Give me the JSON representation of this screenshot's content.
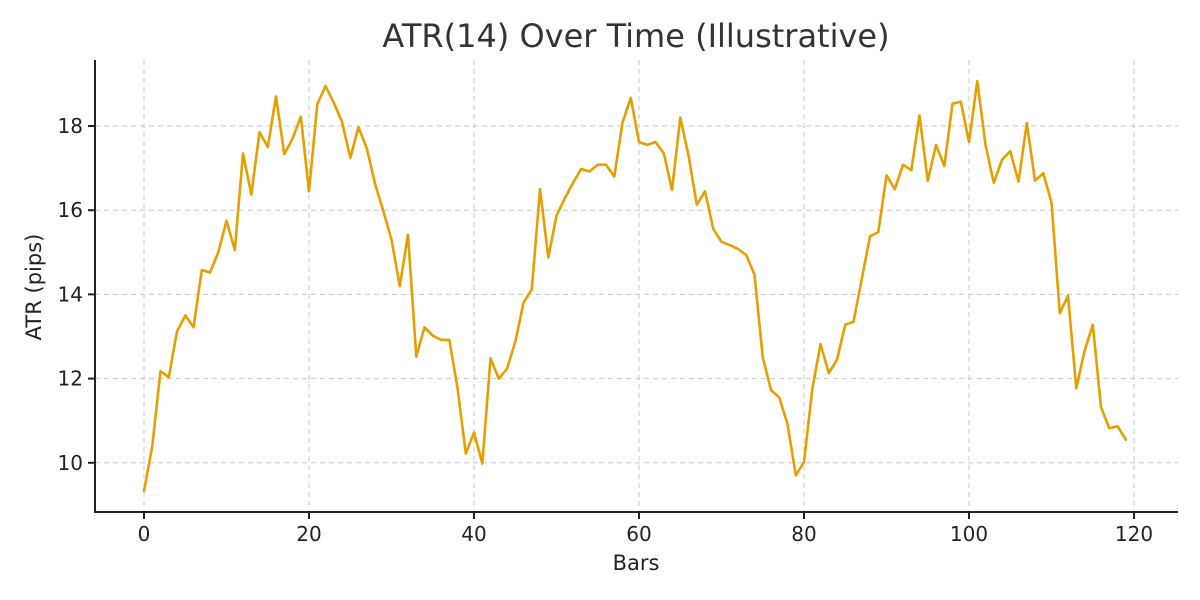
{
  "chart_data": {
    "type": "line",
    "title": "ATR(14) Over Time (Illustrative)",
    "xlabel": "Bars",
    "ylabel": "ATR (pips)",
    "xlim": [
      -6,
      126
    ],
    "ylim": [
      8.8,
      19.5
    ],
    "grid": true,
    "legend": null,
    "x_ticks": [
      0,
      20,
      40,
      60,
      80,
      100,
      120
    ],
    "y_ticks": [
      10,
      12,
      14,
      16,
      18
    ],
    "colors": {
      "line": "#E69F00",
      "grid": "#c8c8c8",
      "axis": "#222222",
      "title": "#333333"
    },
    "series": [
      {
        "name": "ATR(14)",
        "x": [
          0,
          1,
          2,
          3,
          4,
          5,
          6,
          7,
          8,
          9,
          10,
          11,
          12,
          13,
          14,
          15,
          16,
          17,
          18,
          19,
          20,
          21,
          22,
          23,
          24,
          25,
          26,
          27,
          28,
          29,
          30,
          31,
          32,
          33,
          34,
          35,
          36,
          37,
          38,
          39,
          40,
          41,
          42,
          43,
          44,
          45,
          46,
          47,
          48,
          49,
          50,
          51,
          52,
          53,
          54,
          55,
          56,
          57,
          58,
          59,
          60,
          61,
          62,
          63,
          64,
          65,
          66,
          67,
          68,
          69,
          70,
          71,
          72,
          73,
          74,
          75,
          76,
          77,
          78,
          79,
          80,
          81,
          82,
          83,
          84,
          85,
          86,
          87,
          88,
          89,
          90,
          91,
          92,
          93,
          94,
          95,
          96,
          97,
          98,
          99,
          100,
          101,
          102,
          103,
          104,
          105,
          106,
          107,
          108,
          109,
          110,
          111,
          112,
          113,
          114,
          115,
          116,
          117,
          118,
          119
        ],
        "values": [
          9.33,
          10.4,
          12.18,
          12.03,
          13.12,
          13.5,
          13.22,
          14.58,
          14.52,
          15.0,
          15.75,
          15.05,
          17.35,
          16.37,
          17.85,
          17.5,
          18.7,
          17.33,
          17.7,
          18.22,
          16.45,
          18.52,
          18.95,
          18.55,
          18.1,
          17.25,
          17.97,
          17.47,
          16.63,
          15.98,
          15.3,
          14.2,
          15.42,
          12.52,
          13.22,
          13.02,
          12.92,
          12.92,
          11.78,
          10.22,
          10.72,
          9.98,
          12.48,
          12.0,
          12.23,
          12.88,
          13.8,
          14.12,
          16.5,
          14.88,
          15.87,
          16.28,
          16.65,
          16.98,
          16.92,
          17.08,
          17.08,
          16.8,
          18.08,
          18.67,
          17.62,
          17.55,
          17.62,
          17.35,
          16.48,
          18.2,
          17.3,
          16.13,
          16.45,
          15.55,
          15.25,
          15.17,
          15.08,
          14.93,
          14.47,
          12.5,
          11.73,
          11.55,
          10.92,
          9.7,
          10.02,
          11.75,
          12.82,
          12.13,
          12.45,
          13.28,
          13.35,
          14.37,
          15.38,
          15.48,
          16.83,
          16.5,
          17.08,
          16.95,
          18.25,
          16.7,
          17.55,
          17.05,
          18.53,
          18.58,
          17.62,
          19.07,
          17.55,
          16.65,
          17.2,
          17.4,
          16.68,
          18.07,
          16.7,
          16.88,
          16.18,
          13.55,
          13.97,
          11.77,
          12.65,
          13.28,
          11.32,
          10.82,
          10.87,
          10.55
        ]
      }
    ]
  }
}
